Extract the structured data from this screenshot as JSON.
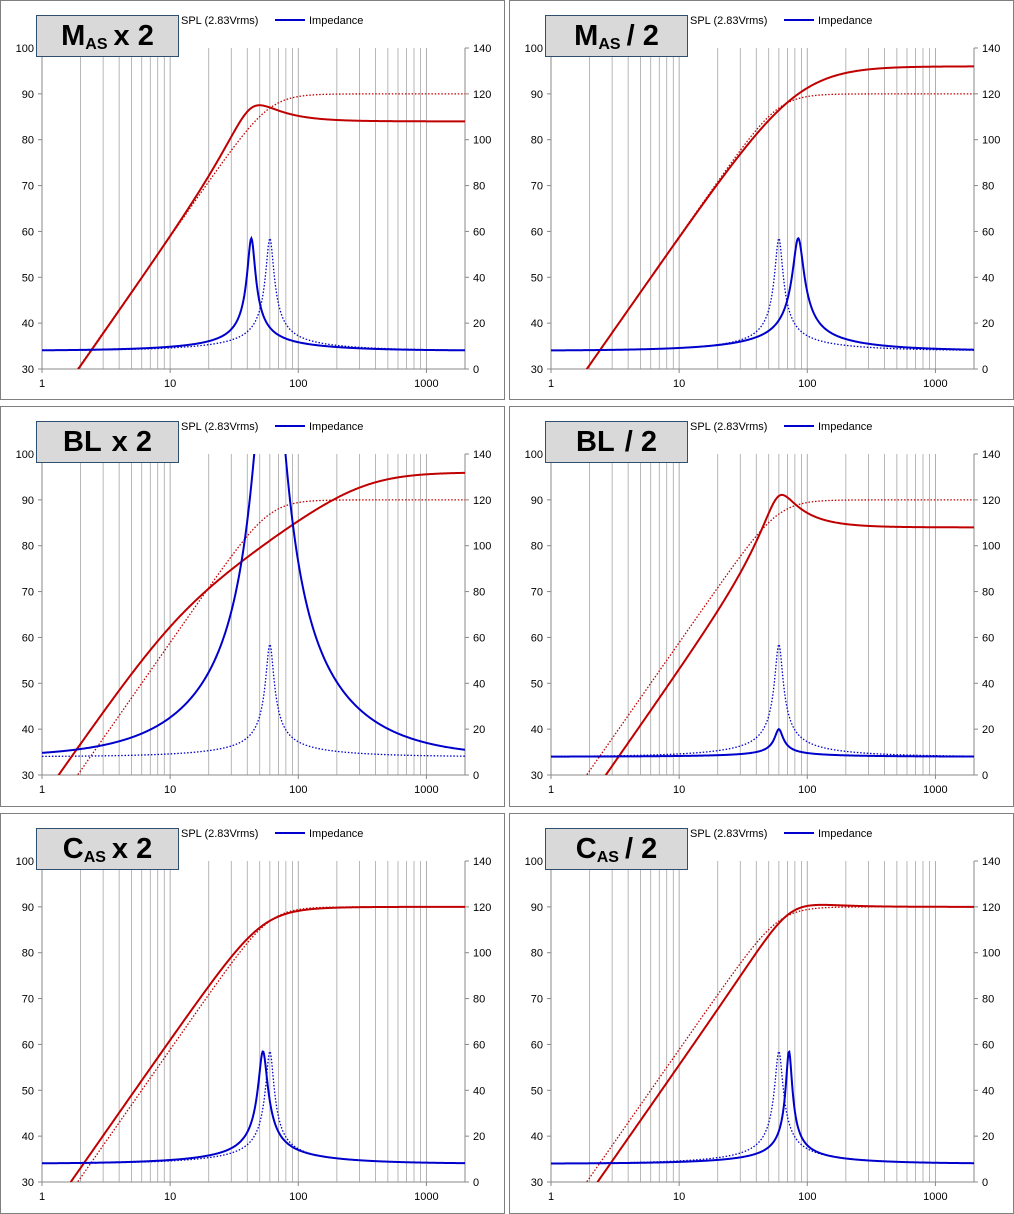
{
  "legend": {
    "spl": "SPL (2.83Vrms)",
    "impedance": "Impedance"
  },
  "colors": {
    "spl": "#c00000",
    "impedance": "#0000cc",
    "grid": "#a6a6a6"
  },
  "chart_data": [
    {
      "type": "line",
      "label_main": "M",
      "label_sub": "AS",
      "label_tail": "x 2",
      "xscale": "log",
      "xlim": [
        1,
        2000
      ],
      "ylim": [
        30,
        100
      ],
      "y2lim": [
        0,
        140
      ],
      "xticks": [
        "1",
        "10",
        "100",
        "1000"
      ],
      "yticks": [
        "30",
        "40",
        "50",
        "60",
        "70",
        "80",
        "90",
        "100"
      ],
      "y2ticks": [
        "0",
        "20",
        "40",
        "60",
        "80",
        "100",
        "120",
        "140"
      ],
      "grid": true,
      "legend_position": "top",
      "series": [
        {
          "name": "SPL (2.83Vrms)",
          "axis": "left",
          "style": "solid",
          "f0": 43,
          "q": 1.4,
          "asym": 84,
          "qmax": 13
        },
        {
          "name": "",
          "axis": "left",
          "style": "dotted",
          "f0": 60,
          "q": 0.7,
          "asym": 90,
          "qmax": 16
        },
        {
          "name": "Impedance",
          "axis": "right",
          "style": "solid",
          "f0": 43,
          "peak": 57,
          "base": 8,
          "q": 7
        },
        {
          "name": "",
          "axis": "right",
          "style": "dotted",
          "f0": 60,
          "peak": 57,
          "base": 8,
          "q": 7
        }
      ]
    },
    {
      "type": "line",
      "label_main": "M",
      "label_sub": "AS",
      "label_tail": "/ 2",
      "xscale": "log",
      "xlim": [
        1,
        2000
      ],
      "ylim": [
        30,
        100
      ],
      "y2lim": [
        0,
        140
      ],
      "xticks": [
        "1",
        "10",
        "100",
        "1000"
      ],
      "yticks": [
        "30",
        "40",
        "50",
        "60",
        "70",
        "80",
        "90",
        "100"
      ],
      "y2ticks": [
        "0",
        "20",
        "40",
        "60",
        "80",
        "100",
        "120",
        "140"
      ],
      "grid": true,
      "legend_position": "top",
      "series": [
        {
          "name": "SPL (2.83Vrms)",
          "axis": "left",
          "style": "solid",
          "f0": 85,
          "q": 0.5,
          "asym": 96,
          "qmax": 19
        },
        {
          "name": "",
          "axis": "left",
          "style": "dotted",
          "f0": 60,
          "q": 0.7,
          "asym": 90,
          "qmax": 16
        },
        {
          "name": "Impedance",
          "axis": "right",
          "style": "solid",
          "f0": 85,
          "peak": 57,
          "base": 8,
          "q": 5
        },
        {
          "name": "",
          "axis": "right",
          "style": "dotted",
          "f0": 60,
          "peak": 57,
          "base": 8,
          "q": 7
        }
      ]
    },
    {
      "type": "line",
      "label_main": "BL",
      "label_sub": "",
      "label_tail": "x 2",
      "xscale": "log",
      "xlim": [
        1,
        2000
      ],
      "ylim": [
        30,
        100
      ],
      "y2lim": [
        0,
        140
      ],
      "xticks": [
        "1",
        "10",
        "100",
        "1000"
      ],
      "yticks": [
        "30",
        "40",
        "50",
        "60",
        "70",
        "80",
        "90",
        "100"
      ],
      "y2ticks": [
        "0",
        "20",
        "40",
        "60",
        "80",
        "100",
        "120",
        "140"
      ],
      "grid": true,
      "legend_position": "top",
      "series": [
        {
          "name": "SPL (2.83Vrms)",
          "axis": "left",
          "style": "solid",
          "f0": 60,
          "q": 0.18,
          "asym": 96,
          "qmax": 18
        },
        {
          "name": "",
          "axis": "left",
          "style": "dotted",
          "f0": 60,
          "q": 0.7,
          "asym": 90,
          "qmax": 16
        },
        {
          "name": "Impedance",
          "axis": "right",
          "style": "solid",
          "f0": 60,
          "peak": 208,
          "base": 8,
          "q": 2
        },
        {
          "name": "",
          "axis": "right",
          "style": "dotted",
          "f0": 60,
          "peak": 57,
          "base": 8,
          "q": 7
        }
      ]
    },
    {
      "type": "line",
      "label_main": "BL",
      "label_sub": "",
      "label_tail": "/ 2",
      "xscale": "log",
      "xlim": [
        1,
        2000
      ],
      "ylim": [
        30,
        100
      ],
      "y2lim": [
        0,
        140
      ],
      "xticks": [
        "1",
        "10",
        "100",
        "1000"
      ],
      "yticks": [
        "30",
        "40",
        "50",
        "60",
        "70",
        "80",
        "90",
        "100"
      ],
      "y2ticks": [
        "0",
        "20",
        "40",
        "60",
        "80",
        "100",
        "120",
        "140"
      ],
      "grid": true,
      "legend_position": "top",
      "series": [
        {
          "name": "SPL (2.83Vrms)",
          "axis": "left",
          "style": "solid",
          "f0": 60,
          "q": 2.2,
          "asym": 84,
          "qmax": 16
        },
        {
          "name": "",
          "axis": "left",
          "style": "dotted",
          "f0": 60,
          "q": 0.7,
          "asym": 90,
          "qmax": 16
        },
        {
          "name": "Impedance",
          "axis": "right",
          "style": "solid",
          "f0": 60,
          "peak": 20,
          "base": 8,
          "q": 7
        },
        {
          "name": "",
          "axis": "right",
          "style": "dotted",
          "f0": 60,
          "peak": 57,
          "base": 8,
          "q": 7
        }
      ]
    },
    {
      "type": "line",
      "label_main": "C",
      "label_sub": "AS",
      "label_tail": "x 2",
      "xscale": "log",
      "xlim": [
        1,
        2000
      ],
      "ylim": [
        30,
        100
      ],
      "y2lim": [
        0,
        140
      ],
      "xticks": [
        "1",
        "10",
        "100",
        "1000"
      ],
      "yticks": [
        "30",
        "40",
        "50",
        "60",
        "70",
        "80",
        "90",
        "100"
      ],
      "y2ticks": [
        "0",
        "20",
        "40",
        "60",
        "80",
        "100",
        "120",
        "140"
      ],
      "grid": true,
      "legend_position": "top",
      "series": [
        {
          "name": "SPL (2.83Vrms)",
          "axis": "left",
          "style": "solid",
          "f0": 53,
          "q": 0.63,
          "asym": 90,
          "qmax": 16
        },
        {
          "name": "",
          "axis": "left",
          "style": "dotted",
          "f0": 60,
          "q": 0.7,
          "asym": 90,
          "qmax": 16
        },
        {
          "name": "Impedance",
          "axis": "right",
          "style": "solid",
          "f0": 53,
          "peak": 57,
          "base": 8,
          "q": 6
        },
        {
          "name": "",
          "axis": "right",
          "style": "dotted",
          "f0": 60,
          "peak": 57,
          "base": 8,
          "q": 7
        }
      ]
    },
    {
      "type": "line",
      "label_main": "C",
      "label_sub": "AS",
      "label_tail": "/ 2",
      "xscale": "log",
      "xlim": [
        1,
        2000
      ],
      "ylim": [
        30,
        100
      ],
      "y2lim": [
        0,
        140
      ],
      "xticks": [
        "1",
        "10",
        "100",
        "1000"
      ],
      "yticks": [
        "30",
        "40",
        "50",
        "60",
        "70",
        "80",
        "90",
        "100"
      ],
      "y2ticks": [
        "0",
        "20",
        "40",
        "60",
        "80",
        "100",
        "120",
        "140"
      ],
      "grid": true,
      "legend_position": "top",
      "series": [
        {
          "name": "SPL (2.83Vrms)",
          "axis": "left",
          "style": "solid",
          "f0": 73,
          "q": 0.85,
          "asym": 90,
          "qmax": 16
        },
        {
          "name": "",
          "axis": "left",
          "style": "dotted",
          "f0": 60,
          "q": 0.7,
          "asym": 90,
          "qmax": 16
        },
        {
          "name": "Impedance",
          "axis": "right",
          "style": "solid",
          "f0": 72,
          "peak": 57,
          "base": 8,
          "q": 9
        },
        {
          "name": "",
          "axis": "right",
          "style": "dotted",
          "f0": 60,
          "peak": 57,
          "base": 8,
          "q": 7
        }
      ]
    }
  ]
}
